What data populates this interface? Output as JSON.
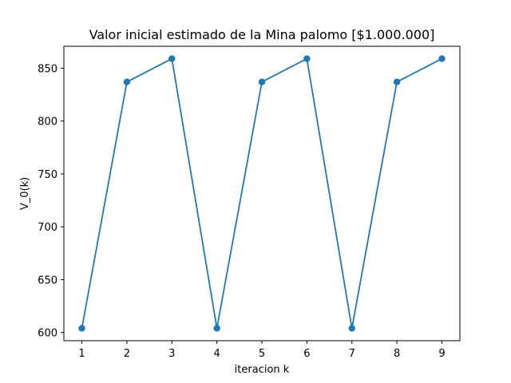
{
  "chart_data": {
    "type": "line",
    "title": "Valor inicial estimado de la Mina palomo [$1.000.000]",
    "xlabel": "iteracion k",
    "ylabel": "V_0(k)",
    "x": [
      1,
      2,
      3,
      4,
      5,
      6,
      7,
      8,
      9
    ],
    "series": [
      {
        "values": [
          604,
          837,
          859,
          604,
          837,
          859,
          604,
          837,
          859
        ],
        "color": "#1f77b4",
        "marker": "circle"
      }
    ],
    "xticks": [
      1,
      2,
      3,
      4,
      5,
      6,
      7,
      8,
      9
    ],
    "yticks": [
      600,
      650,
      700,
      750,
      800,
      850
    ],
    "xlim": [
      0.6,
      9.4
    ],
    "ylim": [
      592.25,
      870.75
    ],
    "grid": false
  }
}
